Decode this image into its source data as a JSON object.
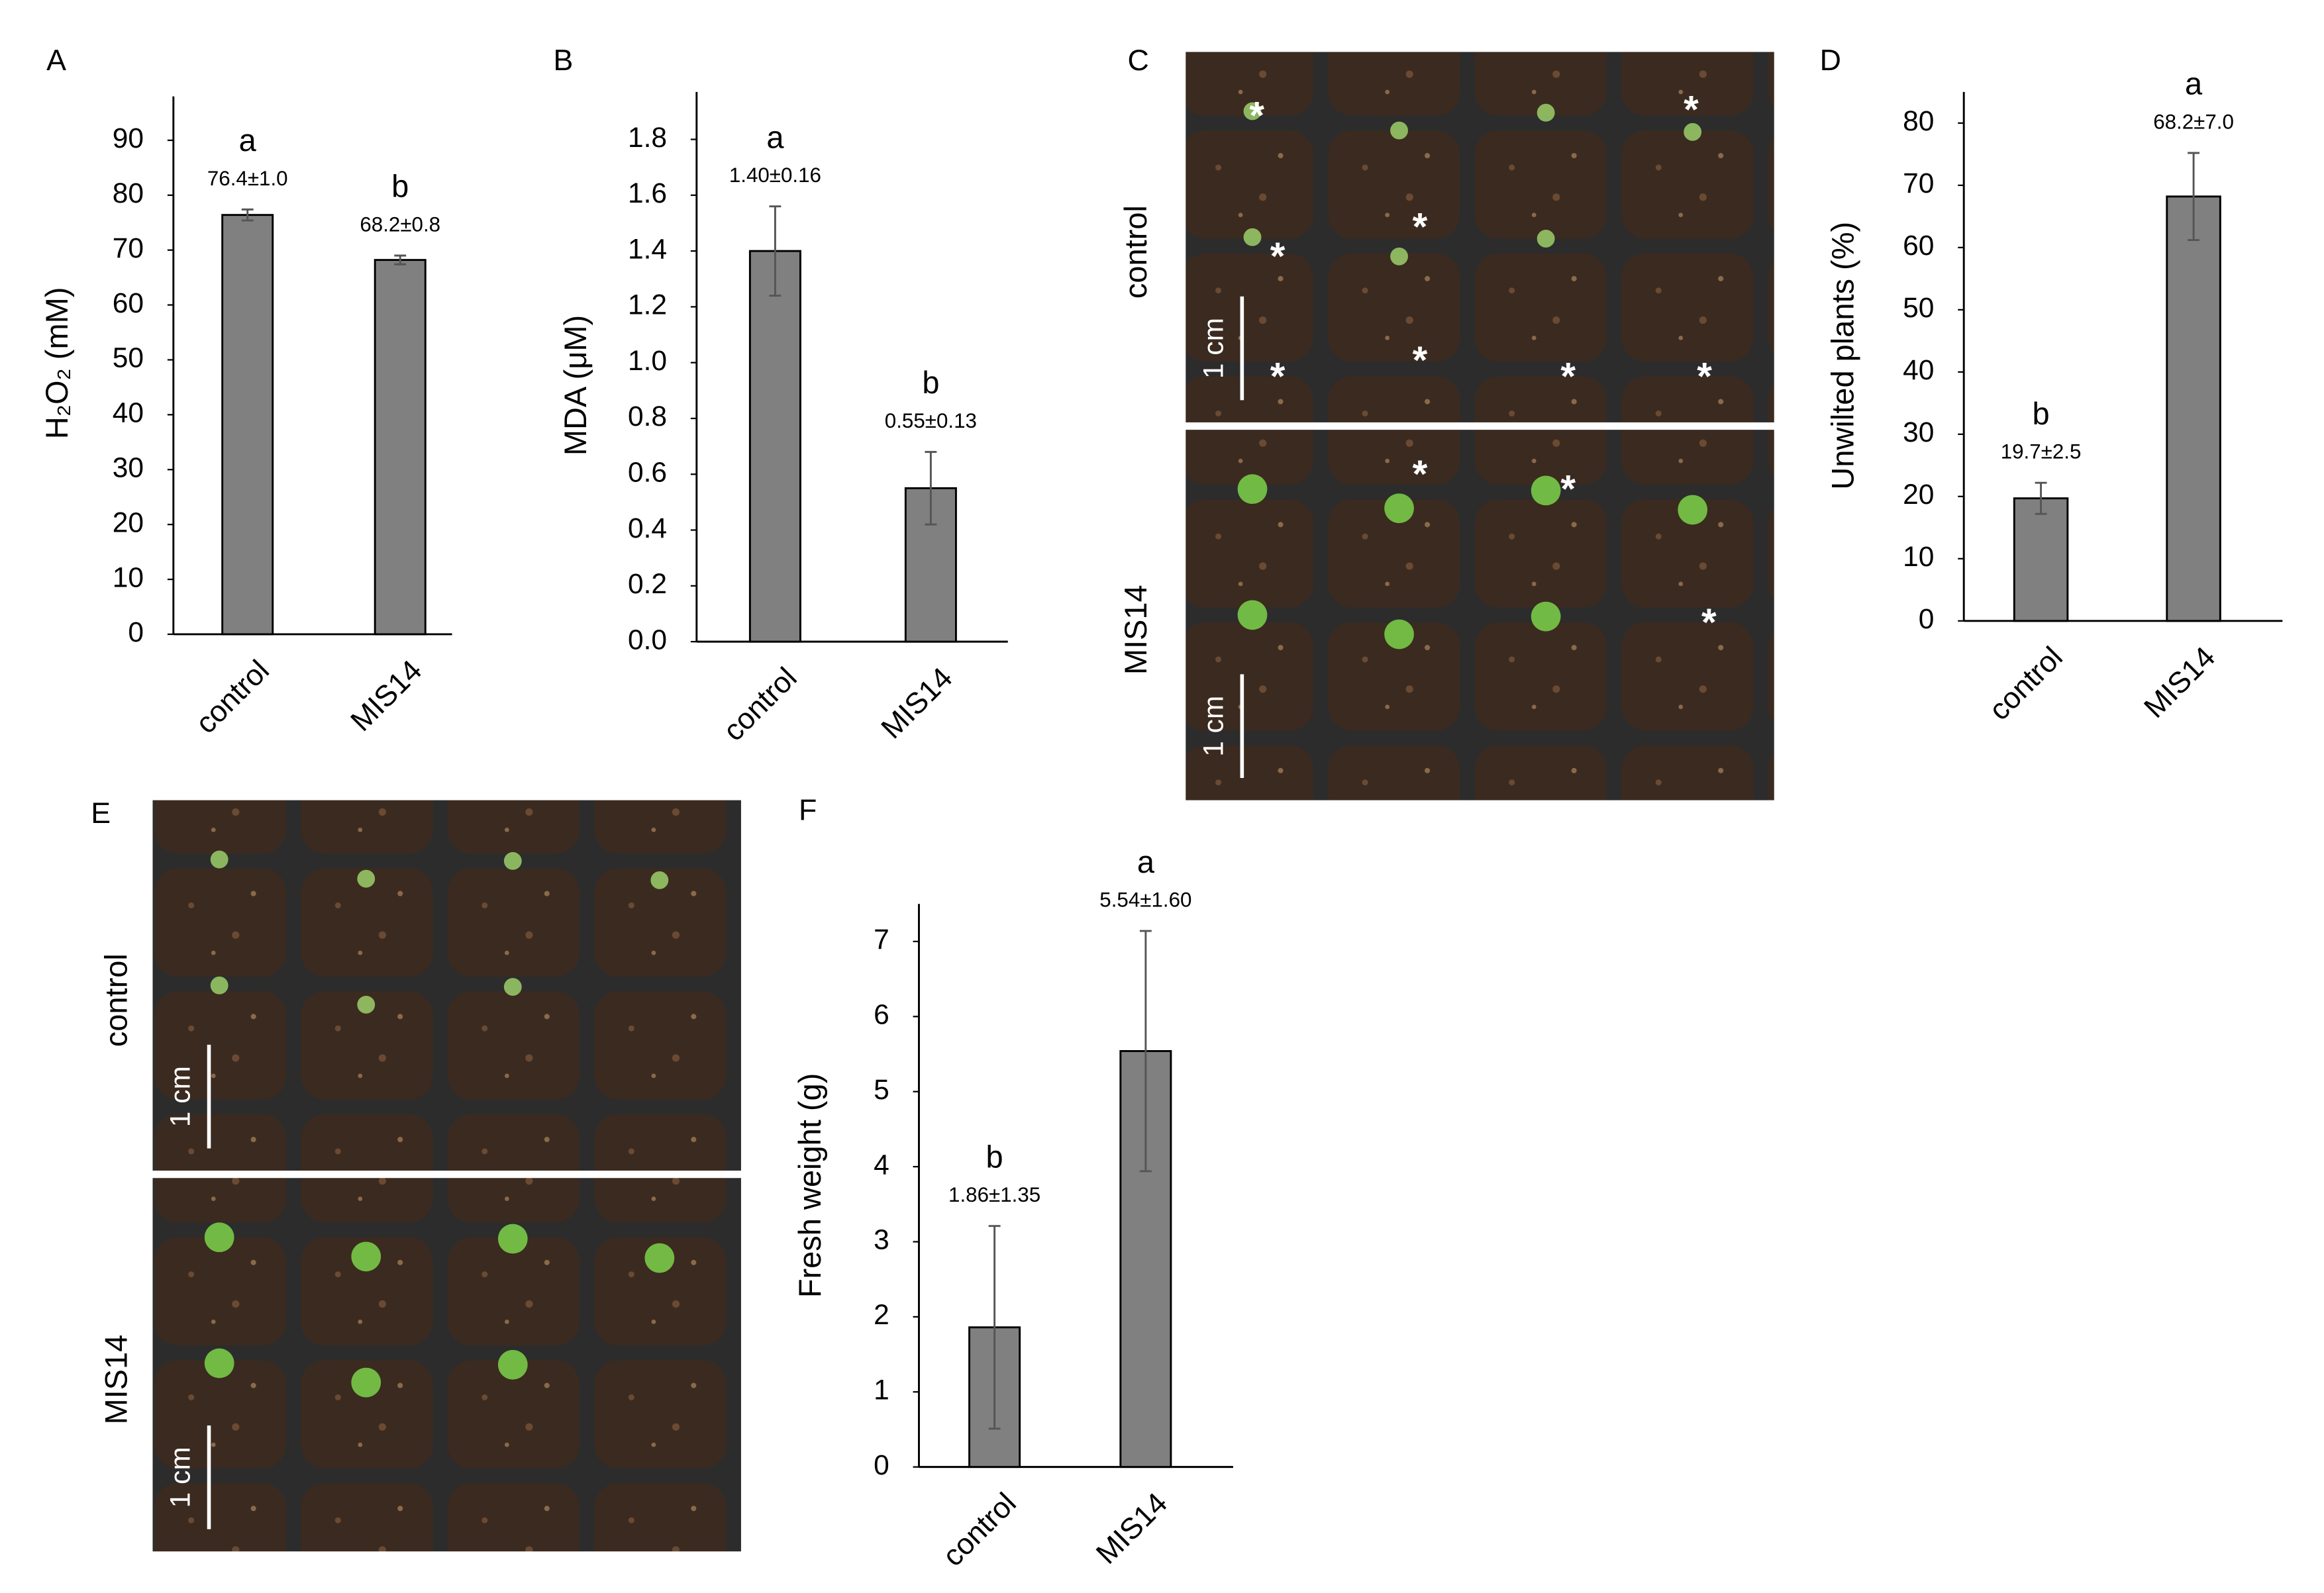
{
  "chart_data": [
    {
      "type": "bar",
      "panel": "A",
      "y_label": "H₂O₂ (mM)",
      "categories": [
        "control",
        "MIS14"
      ],
      "values": [
        76.4,
        68.2
      ],
      "errors": [
        1.0,
        0.8
      ],
      "value_labels": [
        "76.4±1.0",
        "68.2±0.8"
      ],
      "letters": [
        "a",
        "b"
      ],
      "color": "#808080",
      "ylim": [
        0,
        98
      ],
      "yticks": [
        0,
        10,
        20,
        30,
        40,
        50,
        60,
        70,
        80,
        90
      ]
    },
    {
      "type": "bar",
      "panel": "B",
      "y_label": "MDA (μM)",
      "categories": [
        "control",
        "MIS14"
      ],
      "values": [
        1.4,
        0.55
      ],
      "errors": [
        0.16,
        0.13
      ],
      "value_labels": [
        "1.40±0.16",
        "0.55±0.13"
      ],
      "letters": [
        "a",
        "b"
      ],
      "color": "#808080",
      "ylim": [
        0,
        1.97
      ],
      "yticks": [
        {
          "value": 0,
          "label": "0.0"
        },
        0.2,
        0.4,
        0.6,
        0.8,
        {
          "value": 1,
          "label": "1.0"
        },
        1.2,
        1.4,
        1.6,
        1.8
      ]
    },
    {
      "type": "bar",
      "panel": "D",
      "y_label": "Unwilted plants (%)",
      "categories": [
        "control",
        "MIS14"
      ],
      "values": [
        19.7,
        68.2
      ],
      "errors": [
        2.5,
        7.0
      ],
      "value_labels": [
        "19.7±2.5",
        "68.2±7.0"
      ],
      "letters": [
        "b",
        "a"
      ],
      "color": "#808080",
      "ylim": [
        0,
        85
      ],
      "yticks": [
        0,
        10,
        20,
        30,
        40,
        50,
        60,
        70,
        80
      ]
    },
    {
      "type": "bar",
      "panel": "F",
      "y_label": "Fresh weight (g)",
      "categories": [
        "control",
        "MIS14"
      ],
      "values": [
        1.86,
        5.54
      ],
      "errors": [
        1.35,
        1.6
      ],
      "value_labels": [
        "1.86±1.35",
        "5.54±1.60"
      ],
      "letters": [
        "b",
        "a"
      ],
      "color": "#808080",
      "ylim": [
        0,
        7.5
      ],
      "yticks": [
        0,
        1,
        2,
        3,
        4,
        5,
        6,
        7
      ]
    }
  ],
  "photo_panels": [
    {
      "panel": "C",
      "marker": "*",
      "rows": [
        {
          "label": "control",
          "scale_bar": "1 cm"
        },
        {
          "label": "MIS14",
          "scale_bar": "1 cm"
        }
      ]
    },
    {
      "panel": "E",
      "rows": [
        {
          "label": "control",
          "scale_bar": "1 cm"
        },
        {
          "label": "MIS14",
          "scale_bar": "1 cm"
        }
      ]
    }
  ]
}
